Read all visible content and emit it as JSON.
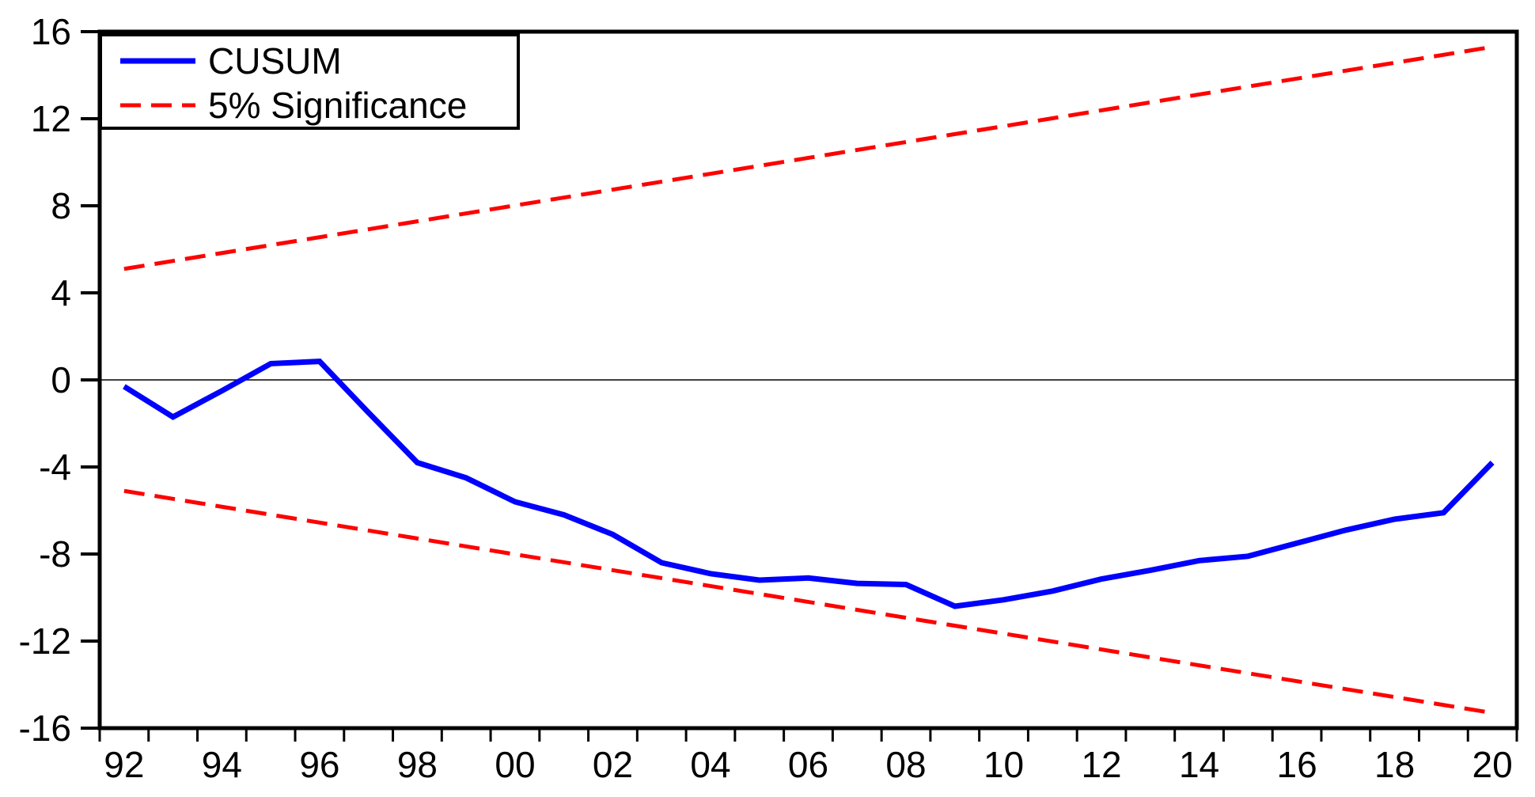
{
  "chart_data": {
    "type": "line",
    "title": "",
    "xlabel": "",
    "ylabel": "",
    "grid": "zero-line-only",
    "background_color": "#ffffff",
    "frame_color": "#000000",
    "axes": {
      "y": {
        "min": -16,
        "max": 16,
        "tick_interval": 4,
        "ticks": [
          16,
          12,
          8,
          4,
          0,
          -4,
          -8,
          -12,
          -16
        ],
        "tick_labels": [
          "16",
          "12",
          "8",
          "4",
          "0",
          "-4",
          "-8",
          "-12",
          "-16"
        ]
      },
      "x": {
        "start_year": 1992,
        "end_year": 2020,
        "minor_tick_every_years": 1,
        "label_every_years": 2,
        "labeled_ticks": [
          "92",
          "94",
          "96",
          "98",
          "00",
          "02",
          "04",
          "06",
          "08",
          "10",
          "12",
          "14",
          "16",
          "18",
          "20"
        ]
      }
    },
    "series": [
      {
        "name": "CUSUM",
        "color": "#0000ff",
        "line_style": "solid",
        "years": [
          1992,
          1993,
          1994,
          1995,
          1996,
          1997,
          1998,
          1999,
          2000,
          2001,
          2002,
          2003,
          2004,
          2005,
          2006,
          2007,
          2008,
          2009,
          2010,
          2011,
          2012,
          2013,
          2014,
          2015,
          2016,
          2017,
          2018,
          2019,
          2020
        ],
        "values": [
          -0.3,
          -1.7,
          -0.5,
          0.75,
          0.85,
          -1.5,
          -3.8,
          -4.5,
          -5.6,
          -6.2,
          -7.1,
          -8.4,
          -8.9,
          -9.2,
          -9.1,
          -9.35,
          -9.4,
          -10.4,
          -10.1,
          -9.7,
          -9.15,
          -8.75,
          -8.3,
          -8.1,
          -7.5,
          -6.9,
          -6.4,
          -6.1,
          -3.8
        ]
      },
      {
        "name": "5% Significance",
        "color": "#ff0000",
        "line_style": "dashed",
        "upper_bound": {
          "years": [
            1992,
            2020
          ],
          "values": [
            5.1,
            15.3
          ]
        },
        "lower_bound": {
          "years": [
            1992,
            2020
          ],
          "values": [
            -5.1,
            -15.3
          ]
        }
      }
    ],
    "legend": {
      "position": "top-left",
      "border": true,
      "entries": [
        {
          "label": "CUSUM",
          "color": "#0000ff",
          "line_style": "solid"
        },
        {
          "label": "5% Significance",
          "color": "#ff0000",
          "line_style": "dashed"
        }
      ]
    }
  }
}
